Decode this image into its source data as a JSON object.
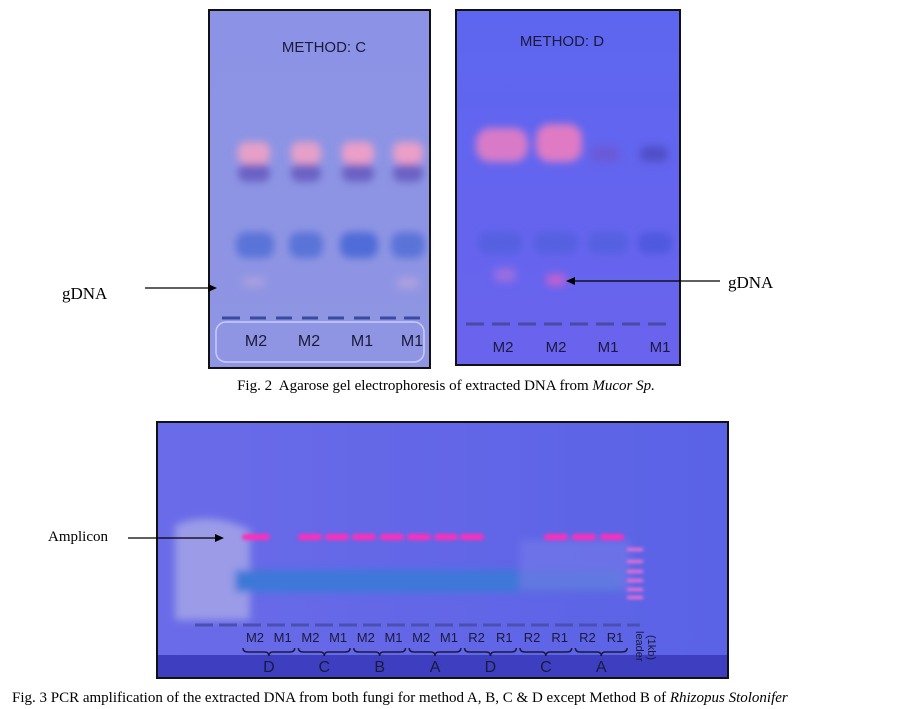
{
  "figure2": {
    "gel_c": {
      "title": "METHOD: C",
      "lanes": [
        "M2",
        "M2",
        "M1",
        "M1"
      ]
    },
    "gel_d": {
      "title": "METHOD: D",
      "lanes": [
        "M2",
        "M2",
        "M1",
        "M1"
      ]
    },
    "label_left": "gDNA",
    "label_right": "gDNA",
    "caption": {
      "text": "Fig. 2  Agarose gel electrophoresis of extracted DNA from ",
      "italic": "Mucor Sp."
    }
  },
  "figure3": {
    "label": "Amplicon",
    "lanes": [
      "M2",
      "M1",
      "M2",
      "M1",
      "M2",
      "M1",
      "M2",
      "M1",
      "R2",
      "R1",
      "R2",
      "R1",
      "R2",
      "R1"
    ],
    "groups": [
      "D",
      "C",
      "B",
      "A",
      "D",
      "C",
      "A"
    ],
    "ladder": "leader",
    "ladder_unit": "(1kb)",
    "caption": {
      "text": "Fig. 3 PCR amplification of the extracted DNA from both fungi for method A, B, C & D except Method B of ",
      "italic": "Rhizopus Stolonifer"
    }
  }
}
